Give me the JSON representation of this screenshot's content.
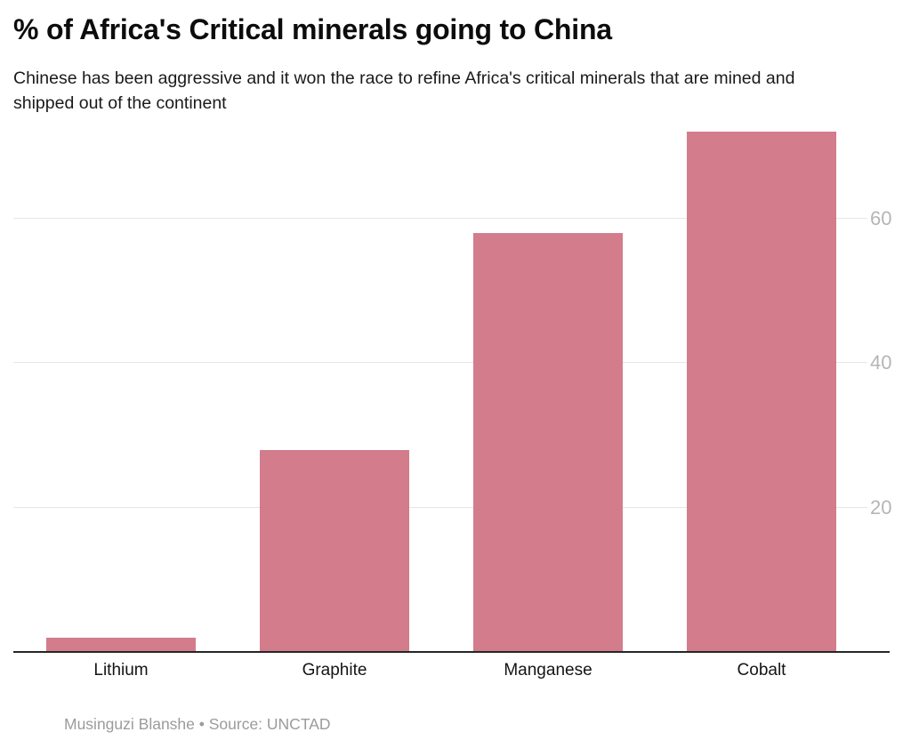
{
  "header": {
    "title": "% of Africa's Critical minerals going to China",
    "subtitle": "Chinese has been aggressive and it won the race to refine Africa's critical minerals that are mined and shipped out of the continent"
  },
  "chart_data": {
    "type": "bar",
    "categories": [
      "Lithium",
      "Graphite",
      "Manganese",
      "Cobalt"
    ],
    "values": [
      2,
      28,
      58,
      72
    ],
    "title": "% of Africa's Critical minerals going to China",
    "xlabel": "",
    "ylabel": "",
    "ylim": [
      0,
      73
    ],
    "yticks": [
      20,
      40,
      60
    ],
    "grid": true,
    "tick_label_side": "right"
  },
  "footer": {
    "text": "Musinguzi Blanshe • Source: UNCTAD"
  },
  "colors": {
    "bar": "#d37c8b",
    "gridline": "#e6e6e6",
    "axis_line": "#262626",
    "tick_label": "#b5b5b5",
    "category_label": "#141414",
    "title": "#0c0c0c",
    "subtitle": "#1a1a1a",
    "byline": "#9b9b9b",
    "background": "#ffffff"
  }
}
